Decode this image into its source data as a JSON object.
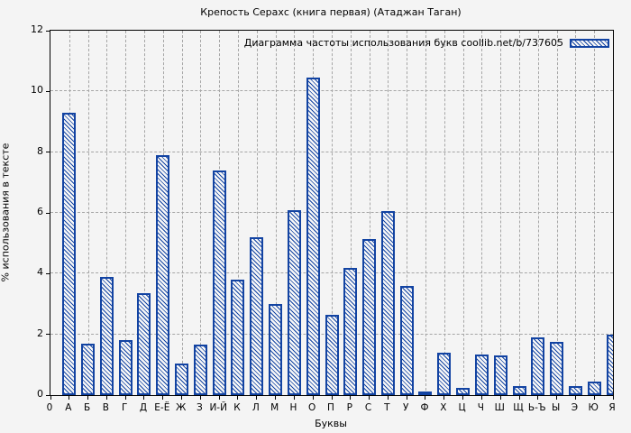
{
  "title": "Крепость Серахс (книга первая) (Атаджан Таган)",
  "legend_label": "Диаграмма частоты использования букв coollib.net/b/737605",
  "chart_data": {
    "type": "bar",
    "title": "Крепость Серахс (книга первая) (Атаджан Таган)",
    "xlabel": "Буквы",
    "ylabel": "% использования в тексте",
    "ylim": [
      0,
      12
    ],
    "yticks": [
      0,
      2,
      4,
      6,
      8,
      10,
      12
    ],
    "grid": "dashed gray, horizontal and vertical",
    "legend": "Диаграмма частоты использования букв coollib.net/b/737605",
    "legend_position": "inside top-right",
    "bar_style": "diagonal blue hatching, no solid fill",
    "categories": [
      "0",
      "А",
      "Б",
      "В",
      "Г",
      "Д",
      "Е-Ё",
      "Ж",
      "З",
      "И-Й",
      "К",
      "Л",
      "М",
      "Н",
      "О",
      "П",
      "Р",
      "С",
      "Т",
      "У",
      "Ф",
      "Х",
      "Ц",
      "Ч",
      "Ш",
      "Щ",
      "Ь-Ъ",
      "Ы",
      "Э",
      "Ю",
      "Я"
    ],
    "values": [
      null,
      9.3,
      1.7,
      3.9,
      1.8,
      3.35,
      7.9,
      1.05,
      1.65,
      7.4,
      3.8,
      5.2,
      3.0,
      6.1,
      10.45,
      2.65,
      4.2,
      5.15,
      6.05,
      3.6,
      0.03,
      1.4,
      0.25,
      1.35,
      1.3,
      0.3,
      1.9,
      1.75,
      0.3,
      0.45,
      2.0
    ]
  },
  "colors": {
    "bar_blue": "#1243a2",
    "background": "#f4f4f4",
    "gridline": "#a6a6a6",
    "axis": "#000000"
  }
}
